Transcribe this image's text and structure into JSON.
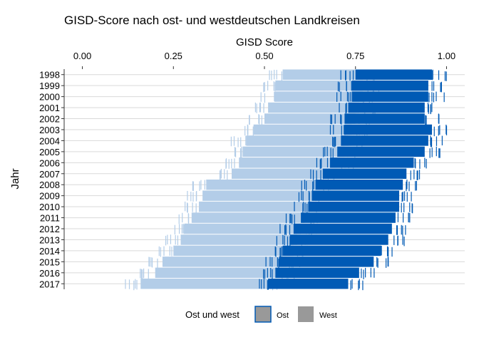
{
  "chart_data": {
    "type": "strip",
    "title": "GISD-Score nach ost- und westdeutschen Landkreisen",
    "xlabel": "GISD Score",
    "ylabel": "Jahr",
    "x_axis_position": "top",
    "xlim": [
      -0.05,
      1.05
    ],
    "xticks": [
      0.0,
      0.25,
      0.5,
      0.75,
      1.0
    ],
    "xtick_labels": [
      "0.00",
      "0.25",
      "0.50",
      "0.75",
      "1.00"
    ],
    "categories": [
      "1998",
      "1999",
      "2000",
      "2001",
      "2002",
      "2003",
      "2004",
      "2005",
      "2006",
      "2007",
      "2008",
      "2009",
      "2010",
      "2011",
      "2012",
      "2013",
      "2014",
      "2015",
      "2016",
      "2017"
    ],
    "grid": "horizontal",
    "legend": {
      "title": "Ost und west",
      "position": "bottom",
      "entries": [
        {
          "label": "Ost",
          "color": "#005AB5"
        },
        {
          "label": "West",
          "color": "#B3CDE8"
        }
      ]
    },
    "series": [
      {
        "name": "West",
        "color": "#B3CDE8",
        "ranges": [
          [
            0.55,
            0.77
          ],
          [
            0.53,
            0.77
          ],
          [
            0.53,
            0.77
          ],
          [
            0.51,
            0.76
          ],
          [
            0.5,
            0.75
          ],
          [
            0.47,
            0.74
          ],
          [
            0.45,
            0.73
          ],
          [
            0.44,
            0.72
          ],
          [
            0.43,
            0.7
          ],
          [
            0.41,
            0.66
          ],
          [
            0.34,
            0.64
          ],
          [
            0.33,
            0.63
          ],
          [
            0.32,
            0.62
          ],
          [
            0.3,
            0.61
          ],
          [
            0.28,
            0.6
          ],
          [
            0.27,
            0.59
          ],
          [
            0.25,
            0.58
          ],
          [
            0.22,
            0.56
          ],
          [
            0.2,
            0.54
          ],
          [
            0.16,
            0.52
          ]
        ]
      },
      {
        "name": "Ost",
        "color": "#005AB5",
        "ranges": [
          [
            0.75,
            0.96
          ],
          [
            0.74,
            0.95
          ],
          [
            0.74,
            0.95
          ],
          [
            0.73,
            0.94
          ],
          [
            0.72,
            0.94
          ],
          [
            0.72,
            0.96
          ],
          [
            0.71,
            0.95
          ],
          [
            0.7,
            0.94
          ],
          [
            0.68,
            0.91
          ],
          [
            0.66,
            0.89
          ],
          [
            0.64,
            0.88
          ],
          [
            0.63,
            0.87
          ],
          [
            0.62,
            0.87
          ],
          [
            0.6,
            0.86
          ],
          [
            0.58,
            0.85
          ],
          [
            0.57,
            0.84
          ],
          [
            0.55,
            0.82
          ],
          [
            0.54,
            0.8
          ],
          [
            0.53,
            0.76
          ],
          [
            0.51,
            0.73
          ]
        ]
      }
    ]
  }
}
